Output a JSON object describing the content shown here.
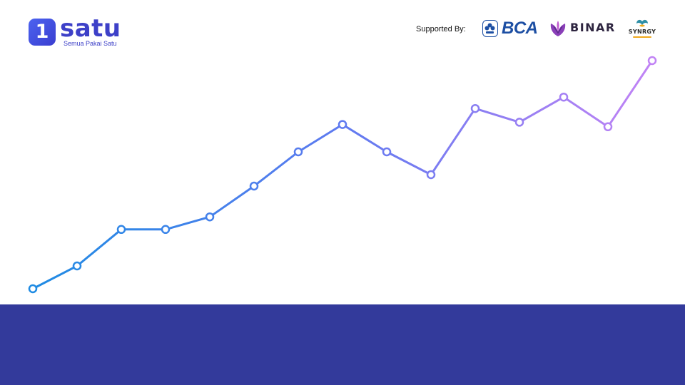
{
  "brand": {
    "icon_glyph": "1",
    "name": "satu",
    "tagline": "Semua Pakai Satu",
    "color": "#3d40c8"
  },
  "sponsors": {
    "label": "Supported By:",
    "logos": [
      {
        "name": "BCA",
        "icon": "bca-logo",
        "color": "#1d4fa3"
      },
      {
        "name": "BINAR",
        "icon": "binar-logo",
        "color": "#2e2540"
      },
      {
        "name": "SYNRGY",
        "icon": "synrgy-logo",
        "color": "#2b2b2b"
      }
    ]
  },
  "chart_data": {
    "type": "line",
    "x": [
      1,
      2,
      3,
      4,
      5,
      6,
      7,
      8,
      9,
      10,
      11,
      12,
      13,
      14,
      15
    ],
    "values": [
      0,
      10,
      26,
      26,
      31.5,
      45,
      60,
      72,
      60,
      50,
      79,
      73,
      84,
      71,
      100
    ],
    "ylim": [
      0,
      100
    ],
    "gradient": [
      "#1f8be3",
      "#5f7af0",
      "#c183f5"
    ],
    "grid": false,
    "axes_visible": false
  },
  "footer": {
    "color": "#333a9b"
  }
}
